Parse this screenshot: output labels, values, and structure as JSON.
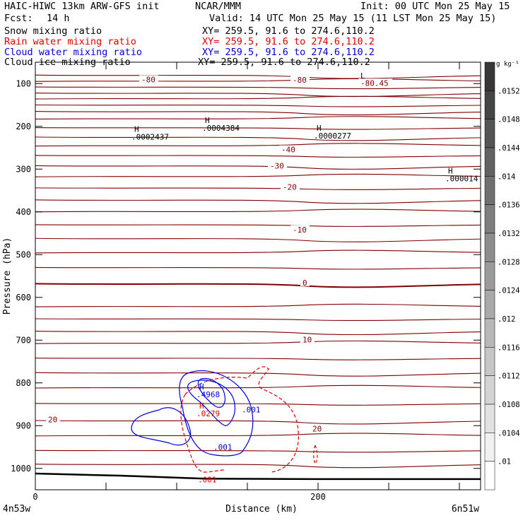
{
  "header": {
    "model": "HAIC-HIWC 13km ARW-GFS init",
    "org": "NCAR/MMM",
    "init": "Init: 00 UTC Mon 25 May 15",
    "fcst_label": "Fcst:",
    "fcst_value": "14 h",
    "valid": "Valid: 14 UTC Mon 25 May 15 (11 LST Mon 25 May 15)"
  },
  "fields": [
    {
      "label": "Snow mixing ratio",
      "xy": "XY= 259.5, 91.6 to 274.6,110.2",
      "color": "#000000"
    },
    {
      "label": "Rain water mixing ratio",
      "xy": "XY= 259.5, 91.6 to 274.6,110.2",
      "color": "#e00000"
    },
    {
      "label": "Cloud water mixing ratio",
      "xy": "XY= 259.5, 91.6 to 274.6,110.2",
      "color": "#0000dd"
    },
    {
      "label": "Cloud ice mixing ratio",
      "xy": "XY= 259.5, 91.6 to 274.6,110.2",
      "color": "#000000"
    }
  ],
  "chart_data": {
    "type": "contour",
    "xlabel": "Distance (km)",
    "ylabel": "Pressure (hPa)",
    "xlim": [
      0,
      315
    ],
    "ylim": [
      1050,
      50
    ],
    "x_ticks": [
      0,
      200
    ],
    "y_ticks": [
      100,
      200,
      300,
      400,
      500,
      600,
      700,
      800,
      900,
      1000
    ],
    "left_endpoint": "4n53w",
    "right_endpoint": "6n51w",
    "colorbar": {
      "unit": "g kg⁻¹",
      "ticks": [
        ".01",
        ".0104",
        ".0108",
        ".0112",
        ".0116",
        ".012",
        ".0124",
        ".0128",
        ".0132",
        ".0136",
        ".014",
        ".0144",
        ".0148",
        ".0152"
      ]
    },
    "temperature_contours": {
      "color": "#800000",
      "levels_labeled": [
        {
          "label": "-80",
          "x": 75,
          "p": 92
        },
        {
          "label": "-80",
          "x": 182,
          "p": 93
        },
        {
          "label": "-80.45",
          "x": 230,
          "p": 100
        },
        {
          "label": "-40",
          "x": 174,
          "p": 256
        },
        {
          "label": "-30",
          "x": 166,
          "p": 294
        },
        {
          "label": "-20",
          "x": 175,
          "p": 343
        },
        {
          "label": "-10",
          "x": 182,
          "p": 443
        },
        {
          "label": "0",
          "x": 189,
          "p": 567
        },
        {
          "label": "10",
          "x": 189,
          "p": 700
        },
        {
          "label": "20",
          "x": 9,
          "p": 887
        },
        {
          "label": "20",
          "x": 196,
          "p": 909
        }
      ],
      "upper_pressures": [
        80,
        95,
        108,
        122,
        136,
        150,
        165,
        183,
        203,
        225,
        246,
        268,
        292,
        318,
        344,
        372,
        400,
        430,
        462,
        496,
        530,
        568,
        622,
        650,
        679,
        708,
        742,
        776,
        812,
        848,
        888,
        924,
        958,
        990
      ]
    },
    "extrema": [
      {
        "type": "H",
        "value": ".0004384",
        "x": 120,
        "p": 192
      },
      {
        "type": "H",
        "value": ".0002437",
        "x": 70,
        "p": 213
      },
      {
        "type": "H",
        "value": ".0000277",
        "x": 199,
        "p": 210
      },
      {
        "type": "H",
        "value": ".000014",
        "x": 292,
        "p": 310
      },
      {
        "type": "L",
        "value": "",
        "x": 230,
        "p": 88
      },
      {
        "type": "H",
        "value": ".4968",
        "x": 116,
        "p": 815,
        "color": "#0000dd"
      },
      {
        "type": "H",
        "value": ".0279",
        "x": 116,
        "p": 860,
        "color": "#e00000"
      }
    ],
    "contour_labels": [
      {
        "text": ".001",
        "x": 146,
        "p": 869,
        "color": "#0000dd"
      },
      {
        "text": ".001",
        "x": 126,
        "p": 957,
        "color": "#0000dd"
      },
      {
        "text": ".001",
        "x": 115,
        "p": 1033,
        "color": "#e00000"
      }
    ],
    "terrain_surface": [
      {
        "x": 0,
        "p": 1012
      },
      {
        "x": 60,
        "p": 1017
      },
      {
        "x": 120,
        "p": 1024
      },
      {
        "x": 200,
        "p": 1025
      },
      {
        "x": 315,
        "p": 1025
      }
    ]
  }
}
